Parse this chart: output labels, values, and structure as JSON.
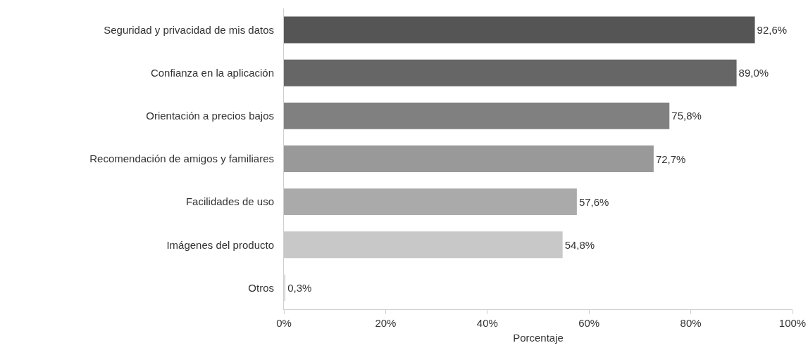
{
  "chart_data": {
    "type": "bar",
    "orientation": "horizontal",
    "xlabel": "Porcentaje",
    "categories": [
      "Seguridad y privacidad de mis datos",
      "Confianza en la aplicación",
      "Orientación a precios bajos",
      "Recomendación de amigos y familiares",
      "Facilidades de uso",
      "Imágenes del producto",
      "Otros"
    ],
    "values": [
      92.6,
      89.0,
      75.8,
      72.7,
      57.6,
      54.8,
      0.3
    ],
    "value_labels": [
      "92,6%",
      "89,0%",
      "75,8%",
      "72,7%",
      "57,6%",
      "54,8%",
      "0,3%"
    ],
    "colors": [
      "#555555",
      "#666666",
      "#808080",
      "#999999",
      "#aaaaaa",
      "#c8c8c8",
      "#dddddd"
    ],
    "xlim": [
      0,
      100
    ],
    "xticks": [
      {
        "value": 0,
        "label": "0%"
      },
      {
        "value": 20,
        "label": "20%"
      },
      {
        "value": 40,
        "label": "40%"
      },
      {
        "value": 60,
        "label": "60%"
      },
      {
        "value": 80,
        "label": "80%"
      },
      {
        "value": 100,
        "label": "100%"
      }
    ],
    "grid": false,
    "legend": false
  }
}
